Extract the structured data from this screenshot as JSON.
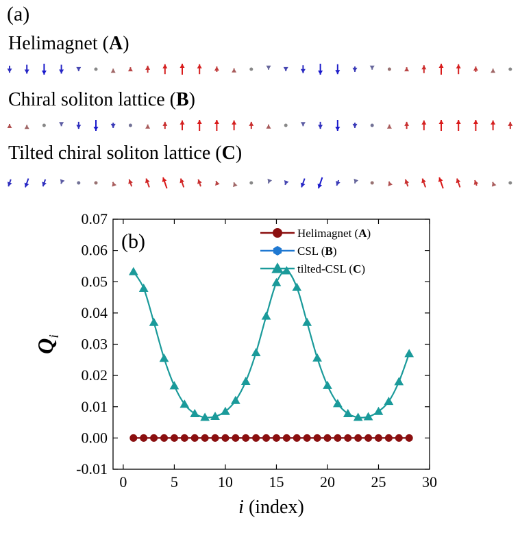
{
  "panel_a": {
    "label": "(a)",
    "rows": [
      {
        "title": "Helimagnet",
        "code": "A",
        "spins": [
          "-0.8",
          "-0.9",
          "-1.0",
          "-0.9",
          "-0.6",
          "0",
          "0.3",
          "0.6",
          "0.8",
          "0.95",
          "1.0",
          "0.95",
          "0.7",
          "0.4",
          "0",
          "-0.3",
          "-0.6",
          "-0.85",
          "-1.0",
          "-0.95",
          "-0.7",
          "-0.3",
          "0.2",
          "0.6",
          "0.85",
          "1.0",
          "0.95",
          "0.7",
          "0.3",
          "0"
        ]
      },
      {
        "title": "Chiral soliton lattice",
        "code": "B",
        "spins": [
          "0.5",
          "0.3",
          "0",
          "-0.4",
          "-0.8",
          "-1.0",
          "-0.7",
          "-0.2",
          "0.4",
          "0.8",
          "0.95",
          "1.0",
          "1.0",
          "0.95",
          "0.8",
          "0.4",
          "0",
          "-0.4",
          "-0.8",
          "-1.0",
          "-0.7",
          "-0.2",
          "0.4",
          "0.8",
          "0.95",
          "1.0",
          "1.0",
          "1.0",
          "0.95",
          "0.8"
        ]
      },
      {
        "title": "Tilted chiral soliton lattice",
        "code": "C",
        "spins": [
          "-0.8",
          "-0.9",
          "-0.8",
          "-0.4",
          "-0.2",
          "0.2",
          "0.4",
          "0.8",
          "0.9",
          "1.0",
          "0.9",
          "0.8",
          "0.6",
          "0.3",
          "0",
          "-0.3",
          "-0.6",
          "-0.9",
          "-1.0",
          "-0.7",
          "-0.3",
          "0.2",
          "0.5",
          "0.8",
          "0.9",
          "1.0",
          "0.9",
          "0.7",
          "0.4",
          "0"
        ]
      }
    ],
    "colors": {
      "up": "#d91a1a",
      "down": "#1a1acc",
      "neutral": "#888888"
    }
  },
  "chart_data": {
    "type": "line",
    "panel_label": "(b)",
    "xlabel_italic": "i",
    "xlabel_rest": " (index)",
    "ylabel_main": "Q",
    "ylabel_sub": "i",
    "xlim": [
      -1,
      30
    ],
    "ylim": [
      -0.01,
      0.07
    ],
    "xticks": [
      0,
      5,
      10,
      15,
      20,
      25,
      30
    ],
    "yticks": [
      -0.01,
      0.0,
      0.01,
      0.02,
      0.03,
      0.04,
      0.05,
      0.06,
      0.07
    ],
    "ytick_labels": [
      "-0.01",
      "0.00",
      "0.01",
      "0.02",
      "0.03",
      "0.04",
      "0.05",
      "0.06",
      "0.07"
    ],
    "legend_position": "top-right",
    "series": [
      {
        "name": "Helimagnet",
        "code": "A",
        "marker": "circle",
        "color": "#8b0f0f",
        "x": [
          1,
          2,
          3,
          4,
          5,
          6,
          7,
          8,
          9,
          10,
          11,
          12,
          13,
          14,
          15,
          16,
          17,
          18,
          19,
          20,
          21,
          22,
          23,
          24,
          25,
          26,
          27,
          28
        ],
        "y": [
          0,
          0,
          0,
          0,
          0,
          0,
          0,
          0,
          0,
          0,
          0,
          0,
          0,
          0,
          0,
          0,
          0,
          0,
          0,
          0,
          0,
          0,
          0,
          0,
          0,
          0,
          0,
          0
        ]
      },
      {
        "name": "CSL",
        "code": "B",
        "marker": "hexagon",
        "color": "#1f78d1",
        "x": [
          1,
          2,
          3,
          4,
          5,
          6,
          7,
          8,
          9,
          10,
          11,
          12,
          13,
          14,
          15,
          16,
          17,
          18,
          19,
          20,
          21,
          22,
          23,
          24,
          25,
          26,
          27,
          28
        ],
        "y": [
          0,
          0,
          0,
          0,
          0,
          0,
          0,
          0,
          0,
          0,
          0,
          0,
          0,
          0,
          0,
          0,
          0,
          0,
          0,
          0,
          0,
          0,
          0,
          0,
          0,
          0,
          0,
          0
        ]
      },
      {
        "name": "tilted-CSL",
        "code": "C",
        "marker": "triangle",
        "color": "#1a9a9a",
        "x": [
          1,
          2,
          3,
          4,
          5,
          6,
          7,
          8,
          9,
          10,
          11,
          12,
          13,
          14,
          15,
          16,
          17,
          18,
          19,
          20,
          21,
          22,
          23,
          24,
          25,
          26,
          27,
          28
        ],
        "y": [
          0.0532,
          0.0479,
          0.037,
          0.0255,
          0.0167,
          0.0108,
          0.0078,
          0.0066,
          0.0069,
          0.0085,
          0.012,
          0.0181,
          0.0273,
          0.039,
          0.0497,
          0.0535,
          0.0482,
          0.037,
          0.0256,
          0.0168,
          0.011,
          0.0078,
          0.0066,
          0.0068,
          0.0085,
          0.0117,
          0.018,
          0.027
        ]
      }
    ]
  }
}
